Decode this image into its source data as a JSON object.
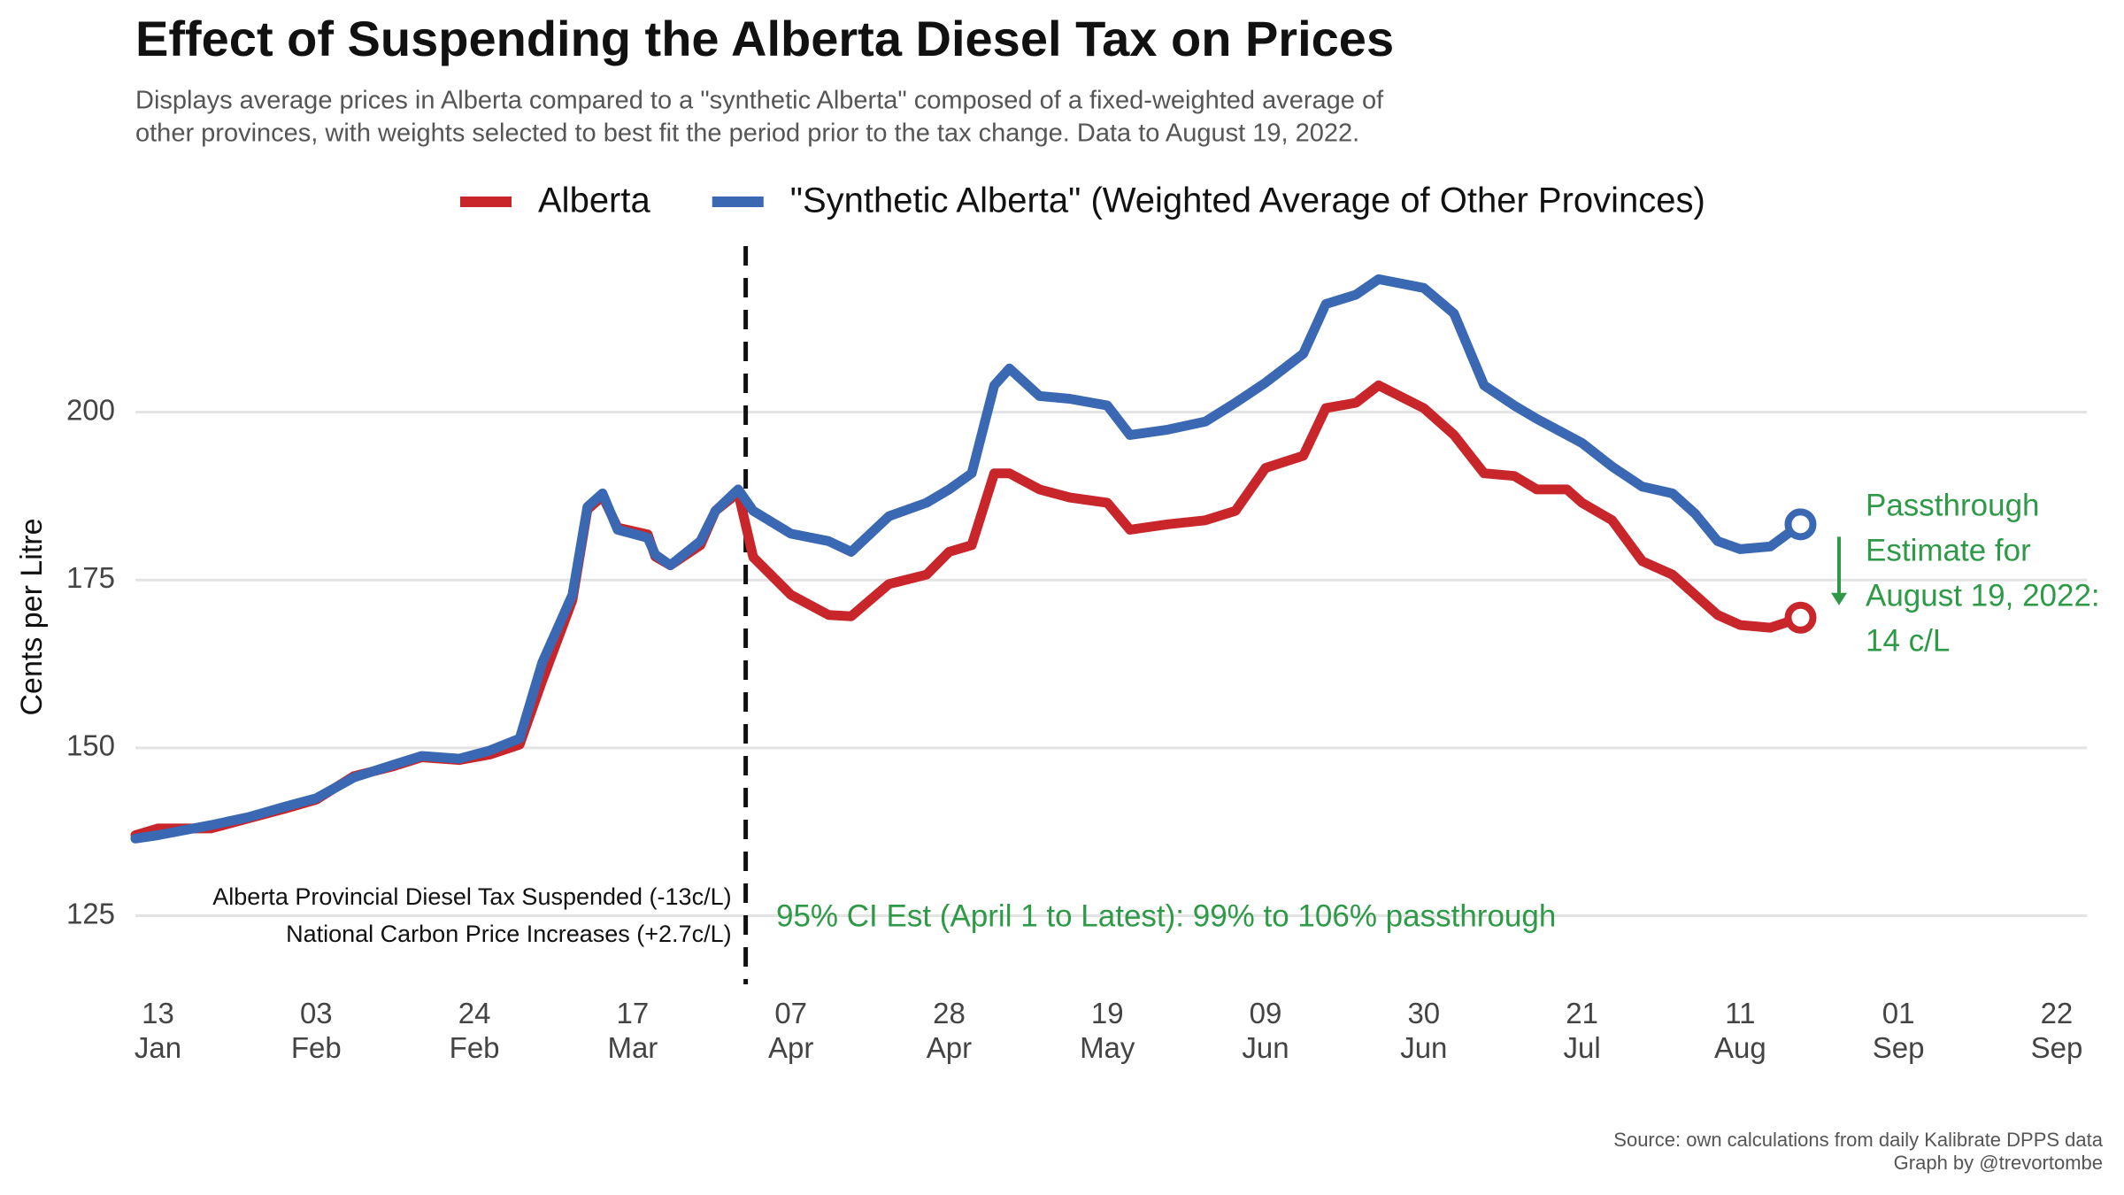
{
  "chart_data": {
    "type": "line",
    "title": "Effect of Suspending the Alberta Diesel Tax on Prices",
    "subtitle": [
      "Displays average prices in Alberta compared to a \"synthetic Alberta\" composed of a fixed-weighted average of",
      "other provinces, with weights selected to best fit the period prior to the tax change. Data to August 19, 2022."
    ],
    "y_label": "Cents per Litre",
    "x": [
      "2022-01-10",
      "2022-01-13",
      "2022-01-20",
      "2022-01-25",
      "2022-01-30",
      "2022-02-03",
      "2022-02-08",
      "2022-02-13",
      "2022-02-17",
      "2022-02-22",
      "2022-02-26",
      "2022-03-02",
      "2022-03-05",
      "2022-03-09",
      "2022-03-11",
      "2022-03-13",
      "2022-03-15",
      "2022-03-19",
      "2022-03-20",
      "2022-03-22",
      "2022-03-26",
      "2022-03-28",
      "2022-03-31",
      "2022-04-02",
      "2022-04-07",
      "2022-04-12",
      "2022-04-15",
      "2022-04-20",
      "2022-04-25",
      "2022-04-28",
      "2022-05-01",
      "2022-05-04",
      "2022-05-06",
      "2022-05-10",
      "2022-05-14",
      "2022-05-19",
      "2022-05-22",
      "2022-05-27",
      "2022-06-01",
      "2022-06-05",
      "2022-06-09",
      "2022-06-14",
      "2022-06-17",
      "2022-06-21",
      "2022-06-24",
      "2022-06-30",
      "2022-07-04",
      "2022-07-08",
      "2022-07-12",
      "2022-07-15",
      "2022-07-19",
      "2022-07-21",
      "2022-07-25",
      "2022-07-29",
      "2022-08-02",
      "2022-08-05",
      "2022-08-08",
      "2022-08-11",
      "2022-08-15",
      "2022-08-19"
    ],
    "series": [
      {
        "name": "Alberta",
        "color": "#c8262b",
        "values": [
          137,
          138,
          138,
          139.5,
          141,
          142.3,
          145.8,
          147.2,
          148.6,
          148.2,
          149,
          150.5,
          160,
          172,
          185.5,
          187.5,
          182.8,
          181.8,
          178.5,
          177.2,
          180.2,
          185.3,
          188,
          178.4,
          172.8,
          169.8,
          169.6,
          174.4,
          175.8,
          179.2,
          180.2,
          190.9,
          190.9,
          188.5,
          187.3,
          186.5,
          182.5,
          183.3,
          183.9,
          185.3,
          191.7,
          193.5,
          200.6,
          201.4,
          204,
          200.6,
          196.6,
          190.9,
          190.5,
          188.5,
          188.5,
          186.5,
          183.9,
          177.8,
          175.8,
          172.8,
          169.8,
          168.3,
          167.9,
          169.4
        ]
      },
      {
        "name": "\"Synthetic Alberta\" (Weighted Average of Other Provinces)",
        "color": "#3a68b3",
        "values": [
          136.5,
          137,
          138.5,
          139.7,
          141.3,
          142.5,
          145.6,
          147.4,
          148.8,
          148.4,
          149.6,
          151.4,
          162.7,
          172.8,
          185.9,
          187.9,
          182.5,
          181.3,
          178.8,
          177.2,
          180.8,
          185.3,
          188.5,
          185.3,
          181.9,
          180.8,
          179.2,
          184.5,
          186.5,
          188.5,
          190.9,
          204,
          206.5,
          202.4,
          202,
          201,
          196.6,
          197.4,
          198.6,
          201.4,
          204.4,
          208.7,
          216.1,
          217.5,
          219.8,
          218.5,
          214.7,
          204,
          201,
          199,
          196.6,
          195.4,
          191.9,
          188.9,
          187.9,
          184.9,
          180.8,
          179.6,
          180,
          183.3
        ]
      }
    ],
    "xlim": [
      "2022-01-10",
      "2022-09-26"
    ],
    "xticks": [
      {
        "value": "2022-01-13",
        "label": "13 Jan"
      },
      {
        "value": "2022-02-03",
        "label": "03 Feb"
      },
      {
        "value": "2022-02-24",
        "label": "24 Feb"
      },
      {
        "value": "2022-03-17",
        "label": "17 Mar"
      },
      {
        "value": "2022-04-07",
        "label": "07 Apr"
      },
      {
        "value": "2022-04-28",
        "label": "28 Apr"
      },
      {
        "value": "2022-05-19",
        "label": "19 May"
      },
      {
        "value": "2022-06-09",
        "label": "09 Jun"
      },
      {
        "value": "2022-06-30",
        "label": "30 Jun"
      },
      {
        "value": "2022-07-21",
        "label": "21 Jul"
      },
      {
        "value": "2022-08-11",
        "label": "11 Aug"
      },
      {
        "value": "2022-09-01",
        "label": "01 Sep"
      },
      {
        "value": "2022-09-22",
        "label": "22 Sep"
      }
    ],
    "ylim": [
      114,
      225
    ],
    "yticks": [
      125,
      150,
      175,
      200
    ],
    "grid": true,
    "legend": "top",
    "event": {
      "date": "2022-04-01",
      "labels": [
        "Alberta Provincial Diesel Tax Suspended (-13c/L)",
        "National Carbon Price Increases (+2.7c/L)"
      ]
    },
    "ci_note": "95% CI Est (April 1 to Latest):  99% to 106% passthrough",
    "passthrough_note": [
      "Passthrough",
      "Estimate for",
      "August 19, 2022:",
      "14 c/L"
    ],
    "annotation_color": "#2e9a47",
    "source": [
      "Source: own calculations from daily Kalibrate DPPS data",
      "Graph by @trevortombe"
    ]
  }
}
